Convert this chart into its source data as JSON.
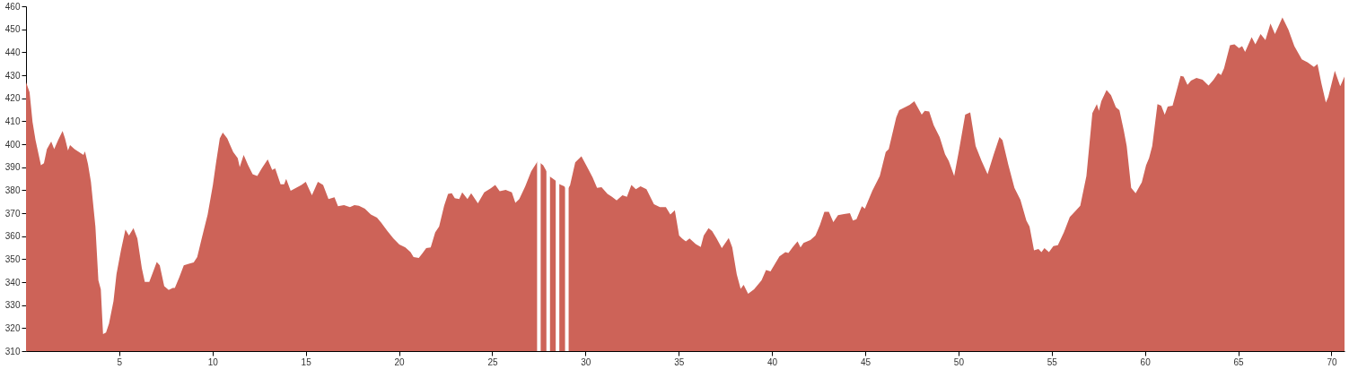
{
  "chart_data": {
    "type": "area",
    "x": [
      0,
      0.19,
      0.35,
      0.51,
      0.8,
      0.96,
      1.12,
      1.35,
      1.51,
      1.72,
      1.96,
      2.09,
      2.25,
      2.36,
      2.6,
      2.84,
      3.08,
      3.16,
      3.32,
      3.48,
      3.72,
      3.88,
      4.01,
      4.13,
      4.29,
      4.45,
      4.69,
      4.85,
      5.09,
      5.33,
      5.52,
      5.76,
      5.97,
      6.21,
      6.37,
      6.61,
      6.85,
      7.01,
      7.17,
      7.41,
      7.65,
      7.87,
      7.98,
      8.22,
      8.46,
      8.73,
      8.99,
      9.18,
      9.42,
      9.74,
      10.02,
      10.18,
      10.39,
      10.55,
      10.79,
      11.11,
      11.35,
      11.46,
      11.67,
      11.91,
      12.15,
      12.4,
      12.64,
      12.96,
      13.2,
      13.36,
      13.65,
      13.84,
      13.95,
      14.19,
      14.48,
      14.77,
      15,
      15.33,
      15.65,
      15.93,
      16.22,
      16.54,
      16.73,
      17.05,
      17.37,
      17.61,
      17.85,
      18.17,
      18.49,
      18.82,
      19.06,
      19.38,
      19.7,
      20.02,
      20.34,
      20.62,
      20.78,
      21.06,
      21.25,
      21.46,
      21.7,
      21.94,
      22.15,
      22.42,
      22.63,
      22.83,
      22.99,
      23.23,
      23.39,
      23.67,
      23.87,
      24.23,
      24.57,
      24.92,
      25.16,
      25.4,
      25.72,
      26.05,
      26.24,
      26.45,
      26.77,
      27.09,
      27.44,
      27.73,
      28.05,
      28.37,
      28.61,
      28.86,
      29.01,
      29.17,
      29.45,
      29.78,
      30.09,
      30.38,
      30.62,
      30.86,
      31.18,
      31.42,
      31.67,
      31.98,
      32.22,
      32.46,
      32.7,
      32.95,
      33.27,
      33.67,
      33.99,
      34.31,
      34.55,
      34.79,
      35.02,
      35.18,
      35.38,
      35.58,
      35.91,
      36.18,
      36.34,
      36.6,
      36.79,
      37.03,
      37.31,
      37.68,
      37.87,
      38.11,
      38.32,
      38.48,
      38.72,
      39.04,
      39.44,
      39.68,
      39.92,
      40.4,
      40.72,
      40.88,
      41.12,
      41.37,
      41.53,
      41.69,
      42.06,
      42.33,
      42.57,
      42.81,
      43.05,
      43.29,
      43.54,
      43.86,
      44.18,
      44.34,
      44.53,
      44.82,
      44.98,
      45.38,
      45.78,
      46.1,
      46.26,
      46.66,
      46.82,
      47.06,
      47.39,
      47.63,
      48.03,
      48.19,
      48.43,
      48.67,
      48.99,
      49.28,
      49.48,
      49.77,
      50.04,
      50.36,
      50.63,
      50.92,
      51.24,
      51.56,
      51.88,
      52.2,
      52.36,
      52.68,
      53,
      53.32,
      53.64,
      53.81,
      54.05,
      54.29,
      54.45,
      54.61,
      54.85,
      55.09,
      55.33,
      55.65,
      55.97,
      56.21,
      56.53,
      56.86,
      57.18,
      57.42,
      57.53,
      57.66,
      57.94,
      58.18,
      58.44,
      58.63,
      58.87,
      59.02,
      59.26,
      59.5,
      59.83,
      60.06,
      60.22,
      60.39,
      60.67,
      60.87,
      61.06,
      61.22,
      61.48,
      61.91,
      62.07,
      62.28,
      62.47,
      62.76,
      63.09,
      63.41,
      63.68,
      63.92,
      64.08,
      64.24,
      64.56,
      64.8,
      65.04,
      65.21,
      65.37,
      65.72,
      65.92,
      66.2,
      66.46,
      66.73,
      66.97,
      67.37,
      67.69,
      68.01,
      68.41,
      68.73,
      69.06,
      69.25,
      69.46,
      69.7,
      69.83,
      70.18,
      70.47,
      70.7
    ],
    "series": [
      {
        "color": "#cd6358",
        "values": [
          427,
          422.6,
          409.6,
          401.8,
          390.8,
          391.7,
          397.9,
          401.2,
          397.9,
          401.8,
          405.7,
          402.5,
          397.3,
          399.6,
          397.9,
          396.6,
          395.3,
          396.9,
          391.4,
          383.6,
          364.2,
          340.8,
          336.9,
          317.4,
          318.1,
          322,
          331.7,
          343.4,
          353.8,
          362.9,
          360.3,
          363.5,
          359,
          346,
          340.1,
          340.1,
          345.3,
          348.8,
          347.3,
          338.2,
          336.6,
          337.5,
          337.5,
          342.1,
          347.3,
          348,
          348.6,
          350.9,
          359,
          369.4,
          382.3,
          391.4,
          402.5,
          405.1,
          402.5,
          396.6,
          394,
          390.1,
          395.3,
          390.8,
          386.9,
          386.2,
          389.5,
          393.4,
          388.8,
          389.5,
          382.6,
          382.6,
          384.9,
          379.7,
          381,
          382.3,
          383.6,
          377.8,
          383.6,
          382.3,
          376.1,
          376.9,
          373,
          373.5,
          372.6,
          373.5,
          373.2,
          371.9,
          369.4,
          368.1,
          365.7,
          362.2,
          359,
          356.4,
          355.1,
          353.1,
          350.9,
          350.5,
          352.5,
          354.8,
          355.1,
          361.6,
          364.2,
          373.2,
          378.4,
          378.7,
          376.5,
          376.1,
          379.1,
          376.1,
          378.7,
          374.3,
          379.1,
          380.8,
          382.3,
          379.5,
          380.1,
          379.1,
          374.5,
          376.1,
          381.7,
          388.2,
          392.7,
          390.8,
          386.2,
          384.3,
          382.6,
          381.7,
          380,
          382.1,
          392.1,
          394.7,
          390.1,
          385.6,
          381,
          381.3,
          378.4,
          377.1,
          375.6,
          377.8,
          377.1,
          382.3,
          380.4,
          381.7,
          380.4,
          373.9,
          372.6,
          372.6,
          369.4,
          371.3,
          360.3,
          359,
          357.7,
          359,
          356.6,
          355.3,
          360.3,
          363.5,
          362.2,
          359,
          354.8,
          359.2,
          355.1,
          343.4,
          337.1,
          338.8,
          334.9,
          336.9,
          340.8,
          345.3,
          344.7,
          351.2,
          353.1,
          352.7,
          355.3,
          357.7,
          355.1,
          357,
          358.3,
          360.3,
          364.8,
          370.6,
          370.6,
          366.1,
          369.1,
          369.6,
          370,
          366.8,
          367.4,
          373,
          371.9,
          379.7,
          386.2,
          396.6,
          397.9,
          411.6,
          414.8,
          415.8,
          417.1,
          418.7,
          412.9,
          414.5,
          414.2,
          408.3,
          403.1,
          395.6,
          392.7,
          386.2,
          397.9,
          412.9,
          413.8,
          399.2,
          392.7,
          386.9,
          395.3,
          403.1,
          401.8,
          390.8,
          381,
          375.8,
          366.8,
          364.2,
          353.8,
          354.4,
          353.1,
          354.8,
          353.1,
          355.7,
          356.1,
          361.6,
          368.3,
          370.4,
          373.2,
          386.2,
          413.5,
          417.4,
          414.5,
          418.7,
          423.6,
          421.3,
          416.1,
          414.8,
          405.7,
          399.2,
          381,
          378.7,
          383.4,
          390.8,
          394,
          399.2,
          417.4,
          416.8,
          412.9,
          416.4,
          416.8,
          429.7,
          429.4,
          425.8,
          427.7,
          428.8,
          428.1,
          425.5,
          428.1,
          431,
          430.1,
          433,
          443.1,
          443.4,
          441.8,
          442.7,
          440.1,
          446.6,
          443.4,
          447.9,
          445.3,
          452.5,
          447.9,
          455.1,
          449.9,
          442.7,
          436.9,
          435.6,
          433.6,
          434.9,
          426.5,
          418.1,
          420.6,
          431.9,
          425.2,
          429.4
        ]
      }
    ],
    "xlim": [
      0,
      70.7
    ],
    "xticks": [
      5,
      10,
      15,
      20,
      25,
      30,
      35,
      40,
      45,
      50,
      55,
      60,
      65,
      70
    ],
    "ylim": [
      310,
      460
    ],
    "yticks": [
      310,
      320,
      330,
      340,
      350,
      360,
      370,
      380,
      390,
      400,
      410,
      420,
      430,
      440,
      450,
      460
    ],
    "ref_lines": [
      {
        "axis": "x",
        "value": 27.5,
        "color": "#ffffff"
      },
      {
        "axis": "x",
        "value": 28,
        "color": "#ffffff"
      },
      {
        "axis": "x",
        "value": 28.5,
        "color": "#ffffff"
      },
      {
        "axis": "x",
        "value": 29,
        "color": "#ffffff"
      }
    ],
    "grid": false
  }
}
